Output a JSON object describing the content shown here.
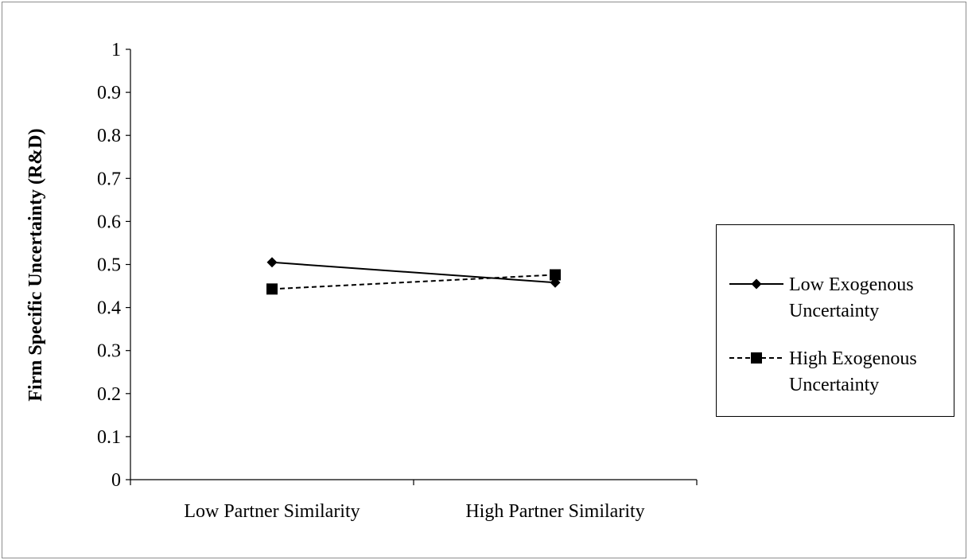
{
  "chart_data": {
    "type": "line",
    "title": "",
    "xlabel": "",
    "ylabel": "Firm Specific Uncertainty (R&D)",
    "categories": [
      "Low Partner Similarity",
      "High Partner Similarity"
    ],
    "ylim": [
      0,
      1
    ],
    "yticks": [
      "0",
      "0.1",
      "0.2",
      "0.3",
      "0.4",
      "0.5",
      "0.6",
      "0.7",
      "0.8",
      "0.9",
      "1"
    ],
    "grid": false,
    "legend_position": "right",
    "series": [
      {
        "name": "Low Exogenous Uncertainty",
        "name_lines": [
          "Low Exogenous",
          "Uncertainty"
        ],
        "values": [
          0.505,
          0.458
        ],
        "marker": "diamond",
        "line_style": "solid",
        "color": "#000000"
      },
      {
        "name": "High Exogenous Uncertainty",
        "name_lines": [
          "High Exogenous",
          "Uncertainty"
        ],
        "values": [
          0.443,
          0.476
        ],
        "marker": "square",
        "line_style": "dashed",
        "color": "#000000"
      }
    ]
  }
}
